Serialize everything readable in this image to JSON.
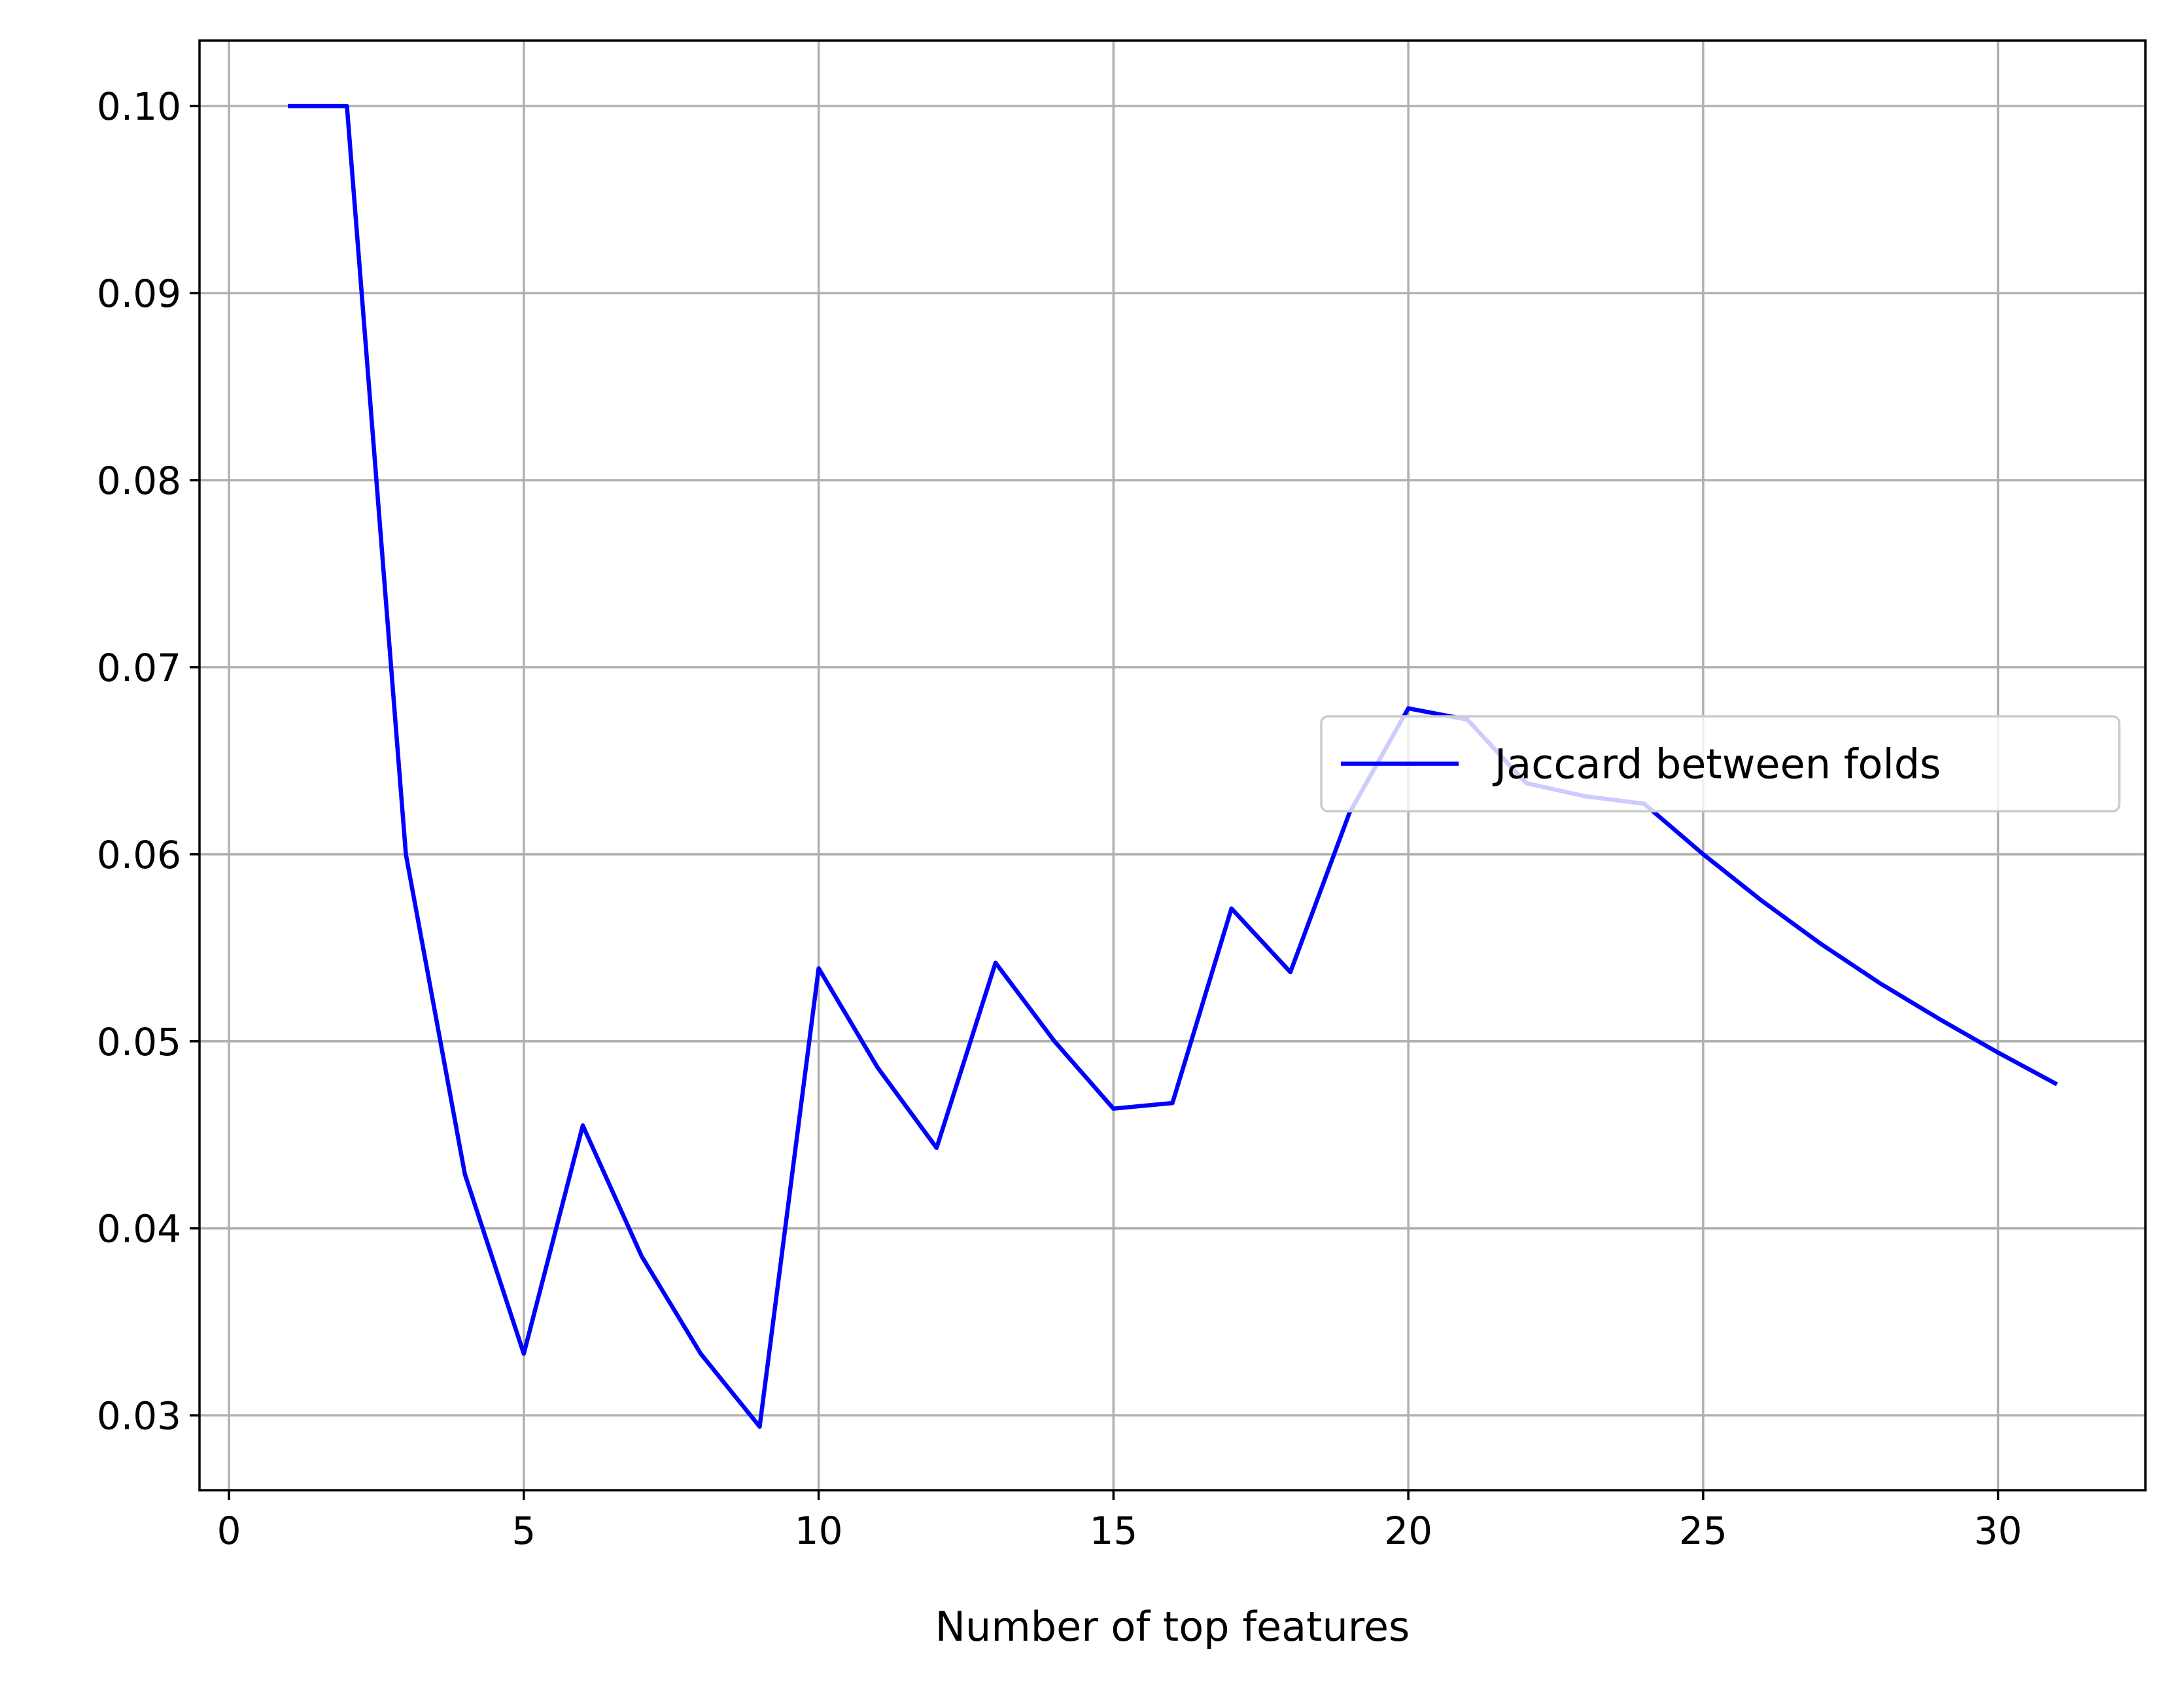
{
  "chart_data": {
    "type": "line",
    "xlabel": "Number of top features",
    "ylabel": "",
    "title": "",
    "xlim": [
      -0.5,
      32.5
    ],
    "ylim": [
      0.026,
      0.1035
    ],
    "xticks": [
      0,
      5,
      10,
      15,
      20,
      25,
      30
    ],
    "yticks": [
      0.03,
      0.04,
      0.05,
      0.06,
      0.07,
      0.08,
      0.09,
      0.1
    ],
    "xtick_labels": [
      "0",
      "5",
      "10",
      "15",
      "20",
      "25",
      "30"
    ],
    "ytick_labels": [
      "0.03",
      "0.04",
      "0.05",
      "0.06",
      "0.07",
      "0.08",
      "0.09",
      "0.10"
    ],
    "grid": true,
    "legend_position": "center-right",
    "series": [
      {
        "name": "Jaccard between folds",
        "color": "#0000ff",
        "x": [
          1,
          2,
          3,
          4,
          5,
          6,
          7,
          8,
          9,
          10,
          11,
          12,
          13,
          14,
          15,
          16,
          17,
          18,
          19,
          20,
          21,
          22,
          23,
          24,
          25,
          26,
          27,
          28,
          29,
          30,
          31
        ],
        "y": [
          0.1,
          0.1,
          0.06,
          0.0429,
          0.0333,
          0.0455,
          0.0385,
          0.0333,
          0.0294,
          0.0539,
          0.0486,
          0.0443,
          0.0542,
          0.05,
          0.0464,
          0.0467,
          0.0571,
          0.0537,
          0.0622,
          0.0678,
          0.0672,
          0.0638,
          0.0631,
          0.0627,
          0.06,
          0.0575,
          0.0552,
          0.0531,
          0.0512,
          0.0494,
          0.0477
        ]
      }
    ]
  }
}
